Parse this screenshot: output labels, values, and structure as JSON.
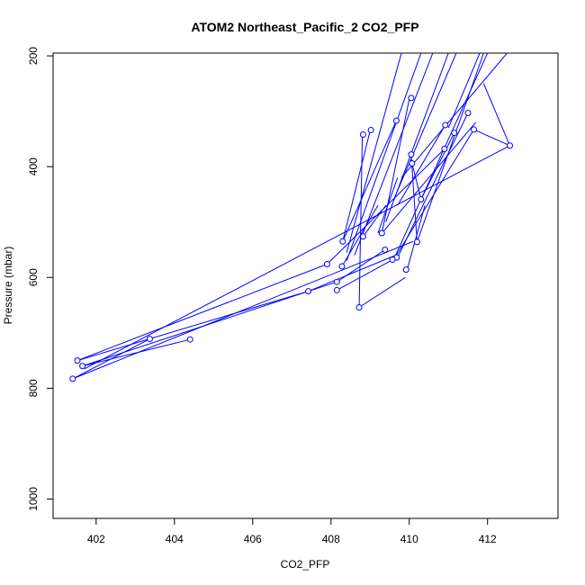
{
  "chart_data": {
    "type": "line",
    "title": "ATOM2 Northeast_Pacific_2 CO2_PFP",
    "xlabel": "CO2_PFP",
    "ylabel": "Pressure (mbar)",
    "xlim": [
      400.9,
      413.8
    ],
    "ylim": [
      1035,
      195
    ],
    "y_reversed": true,
    "x_ticks": [
      402,
      404,
      406,
      408,
      410,
      412
    ],
    "y_ticks": [
      200,
      400,
      600,
      800,
      1000
    ],
    "grid": false,
    "legend": "none",
    "series_color": "#0000ff",
    "marker": "open-circle",
    "points": [
      {
        "x": 412.57,
        "y": 362
      },
      {
        "x": 411.65,
        "y": 333
      },
      {
        "x": 411.5,
        "y": 303
      },
      {
        "x": 411.15,
        "y": 339
      },
      {
        "x": 410.92,
        "y": 325
      },
      {
        "x": 410.9,
        "y": 368
      },
      {
        "x": 410.05,
        "y": 276
      },
      {
        "x": 410.05,
        "y": 378
      },
      {
        "x": 410.07,
        "y": 394
      },
      {
        "x": 409.67,
        "y": 317
      },
      {
        "x": 409.02,
        "y": 334
      },
      {
        "x": 408.82,
        "y": 342
      },
      {
        "x": 410.3,
        "y": 459
      },
      {
        "x": 409.3,
        "y": 520
      },
      {
        "x": 408.82,
        "y": 526
      },
      {
        "x": 410.2,
        "y": 536
      },
      {
        "x": 408.3,
        "y": 535
      },
      {
        "x": 409.38,
        "y": 550
      },
      {
        "x": 409.68,
        "y": 564
      },
      {
        "x": 409.57,
        "y": 568
      },
      {
        "x": 407.9,
        "y": 576
      },
      {
        "x": 408.28,
        "y": 580
      },
      {
        "x": 409.92,
        "y": 586
      },
      {
        "x": 408.15,
        "y": 608
      },
      {
        "x": 408.15,
        "y": 623
      },
      {
        "x": 407.42,
        "y": 625
      },
      {
        "x": 408.72,
        "y": 654
      },
      {
        "x": 403.37,
        "y": 711
      },
      {
        "x": 404.4,
        "y": 712
      },
      {
        "x": 401.52,
        "y": 750
      },
      {
        "x": 401.65,
        "y": 760
      },
      {
        "x": 401.4,
        "y": 783
      }
    ],
    "segments": [
      [
        [
          408.72,
          654
        ],
        [
          409.9,
          600
        ]
      ],
      [
        [
          408.72,
          654
        ],
        [
          408.8,
          345
        ]
      ],
      [
        [
          407.42,
          625
        ],
        [
          401.52,
          750
        ]
      ],
      [
        [
          407.42,
          625
        ],
        [
          409.65,
          560
        ]
      ],
      [
        [
          404.4,
          712
        ],
        [
          401.65,
          760
        ]
      ],
      [
        [
          403.37,
          711
        ],
        [
          401.4,
          783
        ]
      ],
      [
        [
          401.52,
          750
        ],
        [
          407.9,
          576
        ]
      ],
      [
        [
          401.65,
          760
        ],
        [
          408.15,
          608
        ]
      ],
      [
        [
          401.4,
          783
        ],
        [
          410.1,
          535
        ]
      ],
      [
        [
          401.7,
          765
        ],
        [
          412.57,
          362
        ]
      ],
      [
        [
          408.28,
          580
        ],
        [
          409.2,
          470
        ]
      ],
      [
        [
          408.15,
          623
        ],
        [
          409.68,
          564
        ]
      ],
      [
        [
          408.15,
          608
        ],
        [
          409.38,
          550
        ]
      ],
      [
        [
          407.9,
          576
        ],
        [
          410.9,
          368
        ]
      ],
      [
        [
          408.3,
          535
        ],
        [
          409.67,
          317
        ]
      ],
      [
        [
          408.3,
          535
        ],
        [
          409.0,
          335
        ]
      ],
      [
        [
          408.4,
          555
        ],
        [
          409.8,
          195
        ]
      ],
      [
        [
          408.4,
          570
        ],
        [
          410.3,
          195
        ]
      ],
      [
        [
          408.6,
          560
        ],
        [
          410.6,
          195
        ]
      ],
      [
        [
          409.3,
          520
        ],
        [
          410.0,
          278
        ]
      ],
      [
        [
          409.3,
          520
        ],
        [
          411.7,
          320
        ]
      ],
      [
        [
          409.4,
          500
        ],
        [
          411.0,
          195
        ]
      ],
      [
        [
          409.6,
          460
        ],
        [
          411.2,
          195
        ]
      ],
      [
        [
          409.7,
          470
        ],
        [
          410.92,
          325
        ]
      ],
      [
        [
          409.8,
          420
        ],
        [
          412.5,
          195
        ]
      ],
      [
        [
          410.2,
          536
        ],
        [
          411.9,
          195
        ]
      ],
      [
        [
          410.2,
          536
        ],
        [
          410.05,
          380
        ]
      ],
      [
        [
          410.3,
          459
        ],
        [
          411.15,
          339
        ]
      ],
      [
        [
          410.3,
          459
        ],
        [
          410.07,
          394
        ]
      ],
      [
        [
          409.6,
          568
        ],
        [
          411.65,
          333
        ]
      ],
      [
        [
          409.6,
          568
        ],
        [
          412.0,
          195
        ]
      ],
      [
        [
          409.7,
          564
        ],
        [
          411.5,
          303
        ]
      ],
      [
        [
          409.95,
          585
        ],
        [
          410.4,
          470
        ]
      ],
      [
        [
          411.65,
          333
        ],
        [
          412.57,
          362
        ]
      ],
      [
        [
          411.9,
          250
        ],
        [
          412.57,
          362
        ]
      ],
      [
        [
          411.0,
          330
        ],
        [
          411.8,
          195
        ]
      ],
      [
        [
          409.2,
          520
        ],
        [
          409.7,
          420
        ]
      ],
      [
        [
          408.82,
          526
        ],
        [
          409.4,
          470
        ]
      ]
    ]
  }
}
